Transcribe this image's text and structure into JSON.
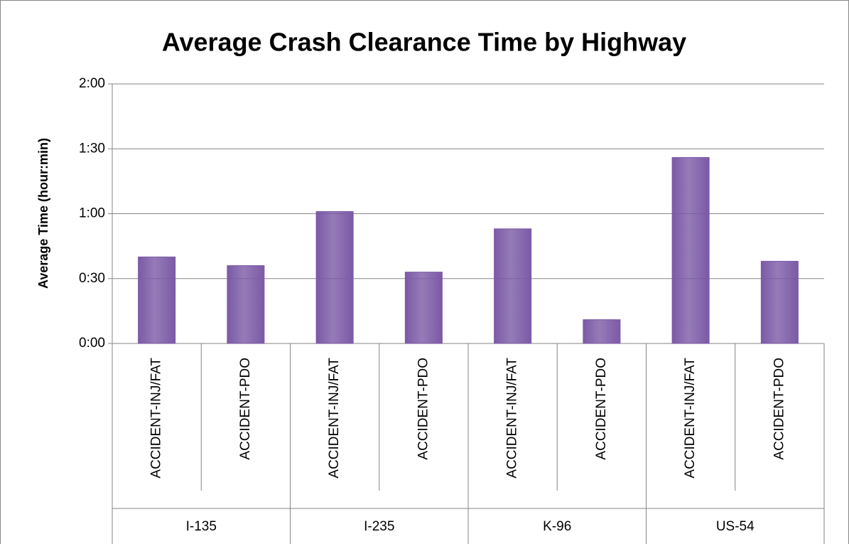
{
  "chart_data": {
    "type": "bar",
    "title": "Average Crash Clearance Time by Highway",
    "y_label": "Average Time (hour:min)",
    "groups": [
      "I-135",
      "I-235",
      "K-96",
      "US-54"
    ],
    "categories": [
      "ACCIDENT-INJ/FAT",
      "ACCIDENT-PDO",
      "ACCIDENT-INJ/FAT",
      "ACCIDENT-PDO",
      "ACCIDENT-INJ/FAT",
      "ACCIDENT-PDO",
      "ACCIDENT-INJ/FAT",
      "ACCIDENT-PDO"
    ],
    "values": [
      40,
      36,
      61,
      33,
      53,
      11,
      86,
      38
    ],
    "color": "#7b5aa6",
    "ylim": [
      0,
      120
    ],
    "yticks": [
      {
        "value": 0,
        "label": "0:00"
      },
      {
        "value": 30,
        "label": "0:30"
      },
      {
        "value": 60,
        "label": "1:00"
      },
      {
        "value": 90,
        "label": "1:30"
      },
      {
        "value": 120,
        "label": "2:00"
      }
    ],
    "grid": true
  }
}
